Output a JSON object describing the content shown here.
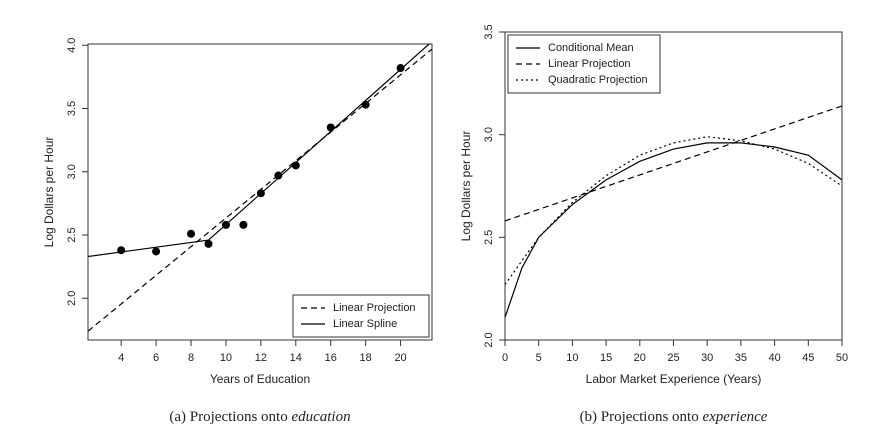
{
  "chart_data": [
    {
      "type": "line",
      "xlabel": "Years of Education",
      "ylabel": "Log Dollars per Hour",
      "caption": "(a) Projections onto ",
      "caption_emphasis": "education",
      "xlim": [
        2.1,
        21.8
      ],
      "ylim": [
        1.67,
        4.01
      ],
      "xticks": [
        4,
        6,
        8,
        10,
        12,
        14,
        16,
        18,
        20
      ],
      "yticks": [
        {
          "value": 2,
          "label": "2.0"
        },
        {
          "value": 2.5,
          "label": "2.5"
        },
        {
          "value": 3,
          "label": "3.0"
        },
        {
          "value": 3.5,
          "label": "3.5"
        },
        {
          "value": 4,
          "label": "4.0"
        }
      ],
      "legend": "lower right",
      "series": [
        {
          "style": "points",
          "color": "#000000",
          "x": [
            4,
            6,
            8,
            9,
            10,
            11,
            12,
            13,
            14,
            16,
            18,
            20
          ],
          "values": [
            2.38,
            2.37,
            2.51,
            2.43,
            2.58,
            2.58,
            2.83,
            2.97,
            3.05,
            3.35,
            3.53,
            3.82
          ]
        },
        {
          "name": "Linear Projection",
          "style": "dashed",
          "color": "#000000",
          "x": [
            2.1,
            21.8
          ],
          "values": [
            1.74,
            3.97
          ]
        },
        {
          "name": "Linear Spline",
          "style": "solid",
          "color": "#000000",
          "x": [
            2.1,
            9,
            21.8
          ],
          "values": [
            2.33,
            2.46,
            4.03
          ]
        }
      ]
    },
    {
      "type": "line",
      "xlabel": "Labor Market Experience (Years)",
      "ylabel": "Log Dollars per Hour",
      "caption": "(b) Projections onto ",
      "caption_emphasis": "experience",
      "xlim": [
        0,
        50
      ],
      "ylim": [
        2,
        3.5
      ],
      "xticks": [
        0,
        5,
        10,
        15,
        20,
        25,
        30,
        35,
        40,
        45,
        50
      ],
      "yticks": [
        {
          "value": 2,
          "label": "2.0"
        },
        {
          "value": 2.5,
          "label": "2.5"
        },
        {
          "value": 3,
          "label": "3.0"
        },
        {
          "value": 3.5,
          "label": "3.5"
        }
      ],
      "legend": "upper left",
      "series": [
        {
          "name": "Conditional Mean",
          "style": "solid",
          "color": "#000000",
          "x": [
            0,
            2.5,
            5,
            10,
            15,
            20,
            25,
            30,
            35,
            40,
            45,
            50
          ],
          "values": [
            2.11,
            2.35,
            2.5,
            2.66,
            2.78,
            2.87,
            2.93,
            2.96,
            2.96,
            2.94,
            2.9,
            2.78
          ]
        },
        {
          "name": "Linear Projection",
          "style": "dashed",
          "color": "#000000",
          "x": [
            0,
            50
          ],
          "values": [
            2.58,
            3.14
          ]
        },
        {
          "name": "Quadratic Projection",
          "style": "dotted",
          "color": "#000000",
          "x": [
            0,
            5,
            10,
            15,
            20,
            25,
            30,
            35,
            40,
            45,
            50
          ],
          "values": [
            2.27,
            2.5,
            2.67,
            2.8,
            2.9,
            2.96,
            2.99,
            2.97,
            2.93,
            2.86,
            2.75
          ]
        }
      ]
    }
  ]
}
